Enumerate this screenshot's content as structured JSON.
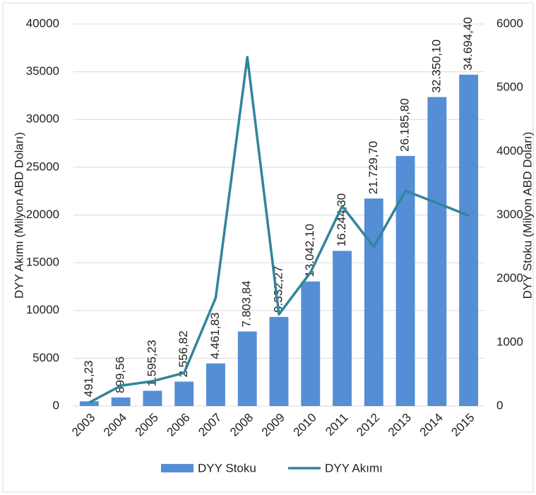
{
  "chart_data": {
    "type": "bar-line",
    "y_label": "DYY Akımı (Milyon ABD Doları)",
    "y2_label": "DYY Stoku (Milyon ABD Doları)",
    "categories": [
      "2003",
      "2004",
      "2005",
      "2006",
      "2007",
      "2008",
      "2009",
      "2010",
      "2011",
      "2012",
      "2013",
      "2014",
      "2015"
    ],
    "series": [
      {
        "name": "DYY Stoku",
        "type": "bar",
        "color": "#558ed5",
        "values": [
          491.23,
          899.56,
          1595.23,
          2556.82,
          4461.83,
          7803.84,
          9332.27,
          13042.1,
          16244.3,
          21729.7,
          26185.8,
          32350.1,
          34694.4
        ],
        "value_labels": [
          "491,23",
          "899,56",
          "1.595,23",
          "2.556,82",
          "4.461,83",
          "7.803,84",
          "9.332,27",
          "13.042,10",
          "16.244,30",
          "21.729,70",
          "26.185,80",
          "32.350,10",
          "34.694,40"
        ]
      },
      {
        "name": "DYY Akımı",
        "type": "line",
        "color": "#31859c",
        "axis": "y2",
        "values": [
          55,
          320,
          390,
          520,
          1700,
          5480,
          1440,
          2100,
          3140,
          2500,
          3380,
          3190,
          2990
        ]
      }
    ],
    "ylim": [
      0,
      40000
    ],
    "yticks": [
      0,
      5000,
      10000,
      15000,
      20000,
      25000,
      30000,
      35000,
      40000
    ],
    "y2lim": [
      0,
      6000
    ],
    "y2ticks": [
      0,
      1000,
      2000,
      3000,
      4000,
      5000,
      6000
    ],
    "grid": true
  }
}
